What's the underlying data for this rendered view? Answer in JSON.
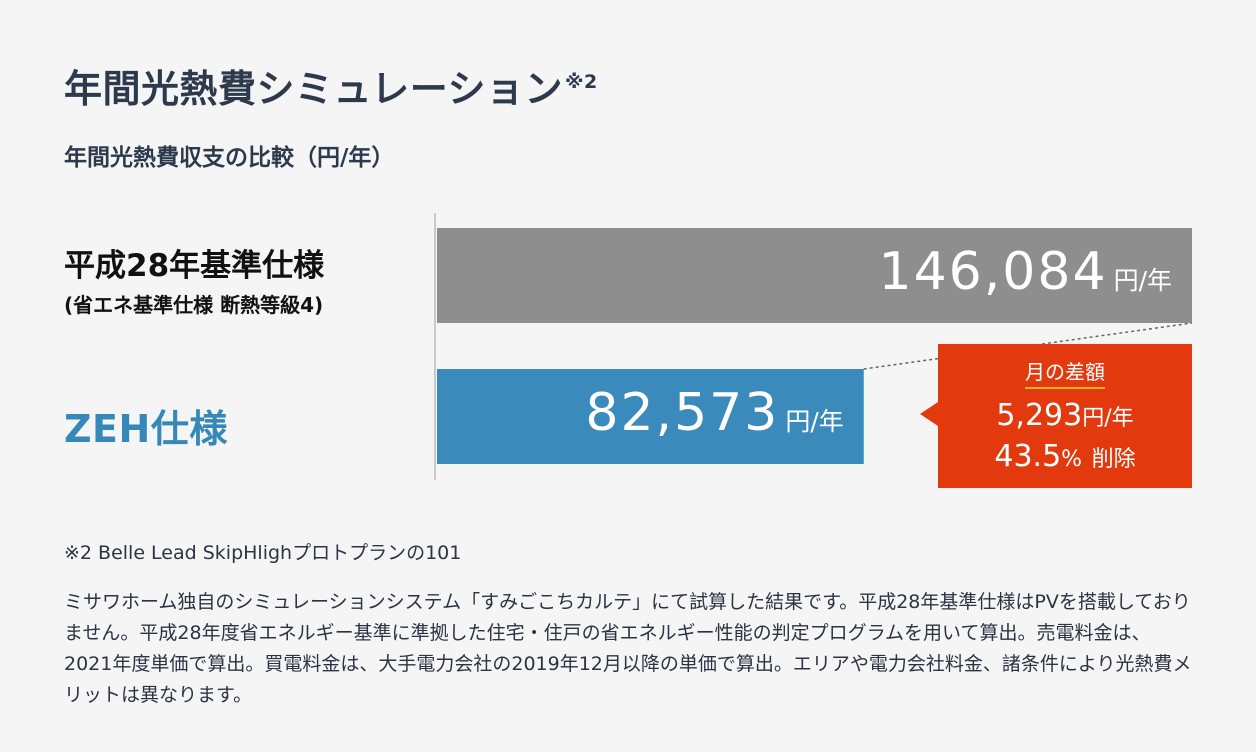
{
  "title": "年間光熱費シミュレーション",
  "title_note": "※2",
  "subtitle": "年間光熱費収支の比較（円/年）",
  "chart_data": {
    "type": "bar",
    "orientation": "horizontal",
    "categories": [
      "平成28年基準仕様",
      "ZEH仕様"
    ],
    "category_sublabels": [
      "(省エネ基準仕様 断熱等級4)",
      ""
    ],
    "values": [
      146084,
      82573
    ],
    "value_labels": [
      "146,084",
      "82,573"
    ],
    "unit": "円/年",
    "colors": [
      "#8e8e8e",
      "#3a8bbb"
    ],
    "grid": false
  },
  "callout": {
    "title": "月の差額",
    "amount": "5,293",
    "amount_unit": "円/年",
    "percent": "43.5",
    "percent_sign": "%",
    "reduction_label": "削除",
    "color": "#e2390e"
  },
  "footnote": "※2 Belle Lead SkipHlighプロトプランの101",
  "description": "ミサワホーム独自のシミュレーションシステム「すみごこちカルテ」にて試算した結果です。平成28年基準仕様はPVを搭載しておりません。平成28年度省エネルギー基準に準拠した住宅・住戸の省エネルギー性能の判定プログラムを用いて算出。売電料金は、2021年度単価で算出。買電料金は、大手電力会社の2019年12月以降の単価で算出。エリアや電力会社料金、諸条件により光熱費メリットは異なります。"
}
